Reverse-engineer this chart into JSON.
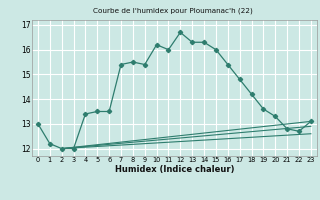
{
  "title": "Courbe de l'humidex pour Ploumanac'h (22)",
  "xlabel": "Humidex (Indice chaleur)",
  "bg_color": "#cce8e4",
  "grid_color": "#ffffff",
  "line_color": "#2e7d6e",
  "xlim": [
    -0.5,
    23.5
  ],
  "ylim": [
    11.7,
    17.2
  ],
  "yticks": [
    12,
    13,
    14,
    15,
    16,
    17
  ],
  "xticks": [
    0,
    1,
    2,
    3,
    4,
    5,
    6,
    7,
    8,
    9,
    10,
    11,
    12,
    13,
    14,
    15,
    16,
    17,
    18,
    19,
    20,
    21,
    22,
    23
  ],
  "series1_x": [
    0,
    1,
    2,
    3,
    4,
    5,
    6,
    7,
    8,
    9,
    10,
    11,
    12,
    13,
    14,
    15,
    16,
    17,
    18,
    19,
    20,
    21,
    22,
    23
  ],
  "series1_y": [
    13.0,
    12.2,
    12.0,
    12.0,
    13.4,
    13.5,
    13.5,
    15.4,
    15.5,
    15.4,
    16.2,
    16.0,
    16.7,
    16.3,
    16.3,
    16.0,
    15.4,
    14.8,
    14.2,
    13.6,
    13.3,
    12.8,
    12.7,
    13.1
  ],
  "series2_x": [
    2,
    23
  ],
  "series2_y": [
    12.0,
    13.1
  ],
  "series3_x": [
    2,
    23
  ],
  "series3_y": [
    12.0,
    12.9
  ],
  "series4_x": [
    2,
    23
  ],
  "series4_y": [
    12.0,
    12.6
  ]
}
